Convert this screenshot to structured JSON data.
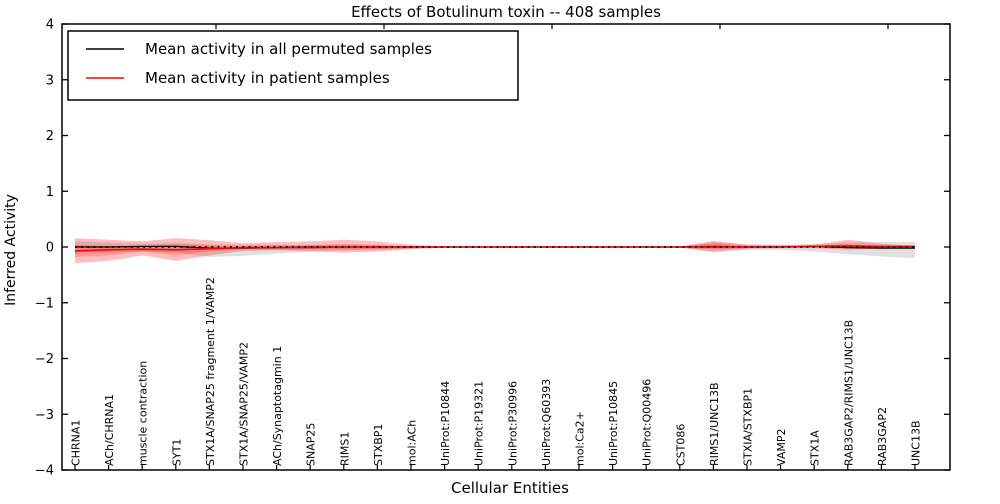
{
  "title": "Effects of Botulinum toxin -- 408 samples",
  "axes": {
    "xlabel": "Cellular Entities",
    "ylabel": "Inferred Activity"
  },
  "legend": {
    "items": [
      {
        "label": "Mean activity in all permuted samples",
        "color": "#000000"
      },
      {
        "label": "Mean activity in patient samples",
        "color": "#ff0000"
      }
    ]
  },
  "chart_data": {
    "type": "line",
    "title": "Effects of Botulinum toxin -- 408 samples",
    "xlabel": "Cellular Entities",
    "ylabel": "Inferred Activity",
    "ylim": [
      -4,
      4
    ],
    "yticks": [
      4,
      3,
      2,
      1,
      0,
      -1,
      -2,
      -3,
      -4
    ],
    "ytick_labels": [
      "4",
      "3",
      "2",
      "1",
      "0",
      "−1",
      "−2",
      "−3",
      "−4"
    ],
    "grid": false,
    "legend_position": "upper left",
    "categories": [
      "CHRNA1",
      "ACh/CHRNA1",
      "muscle contraction",
      "SYT1",
      "STX1A/SNAP25 fragment 1/VAMP2",
      "STX1A/SNAP25/VAMP2",
      "ACh/Synaptotagmin 1",
      "SNAP25",
      "RIMS1",
      "STXBP1",
      "mol:ACh",
      "UniProt:P10844",
      "UniProt:P19321",
      "UniProt:P30996",
      "UniProt:Q60393",
      "mol:Ca2+",
      "UniProt:P10845",
      "UniProt:Q00496",
      "CST086",
      "RIMS1/UNC13B",
      "STXIA/STXBP1",
      "VAMP2",
      "STX1A",
      "RAB3GAP2/RIMS1/UNC13B",
      "RAB3GAP2",
      "UNC13B"
    ],
    "series": [
      {
        "name": "Mean activity in all permuted samples",
        "color": "#000000",
        "style": "solid",
        "values": [
          0.0,
          0.0,
          0.01,
          0.01,
          -0.02,
          -0.02,
          -0.01,
          0.0,
          0.0,
          0.0,
          0.0,
          0.0,
          0.0,
          0.0,
          0.0,
          0.0,
          0.0,
          0.0,
          0.0,
          0.0,
          0.0,
          0.0,
          0.01,
          -0.01,
          -0.02,
          -0.02
        ]
      },
      {
        "name": "Mean activity in patient samples",
        "color": "#ff0000",
        "style": "solid",
        "values": [
          -0.07,
          -0.05,
          -0.04,
          -0.05,
          -0.03,
          -0.01,
          -0.01,
          -0.01,
          0.0,
          0.0,
          0.0,
          0.0,
          0.0,
          0.0,
          0.0,
          0.0,
          0.0,
          0.0,
          0.0,
          0.01,
          0.0,
          0.0,
          0.01,
          0.02,
          0.01,
          0.01
        ]
      }
    ],
    "bands": [
      {
        "name": "permuted-range",
        "color": "rgba(0,0,0,0.12)",
        "upper": [
          0.1,
          0.08,
          0.06,
          0.08,
          0.05,
          0.04,
          0.04,
          0.04,
          0.05,
          0.04,
          0.02,
          0.01,
          0.01,
          0.01,
          0.01,
          0.01,
          0.01,
          0.01,
          0.01,
          0.09,
          0.05,
          0.04,
          0.05,
          0.08,
          0.09,
          0.09
        ],
        "lower": [
          -0.12,
          -0.1,
          -0.08,
          -0.1,
          -0.18,
          -0.16,
          -0.12,
          -0.08,
          -0.06,
          -0.05,
          -0.03,
          -0.01,
          -0.01,
          -0.01,
          -0.01,
          -0.01,
          -0.01,
          -0.01,
          -0.01,
          -0.1,
          -0.06,
          -0.05,
          -0.08,
          -0.13,
          -0.17,
          -0.2
        ]
      },
      {
        "name": "patient-range-outer",
        "color": "rgba(255,0,0,0.25)",
        "upper": [
          0.16,
          0.13,
          0.1,
          0.16,
          0.12,
          0.07,
          0.09,
          0.1,
          0.13,
          0.1,
          0.04,
          0.01,
          0.01,
          0.01,
          0.01,
          0.01,
          0.01,
          0.01,
          0.01,
          0.11,
          0.04,
          0.03,
          0.04,
          0.13,
          0.06,
          0.02
        ],
        "lower": [
          -0.29,
          -0.25,
          -0.15,
          -0.25,
          -0.15,
          -0.07,
          -0.06,
          -0.08,
          -0.1,
          -0.08,
          -0.04,
          -0.01,
          -0.01,
          -0.01,
          -0.01,
          -0.01,
          -0.01,
          -0.01,
          -0.01,
          -0.08,
          -0.03,
          -0.02,
          -0.02,
          -0.05,
          -0.03,
          -0.01
        ]
      },
      {
        "name": "patient-range-inner",
        "color": "rgba(255,0,0,0.2)",
        "upper": [
          0.04,
          0.02,
          0.01,
          0.05,
          0.03,
          0.02,
          0.03,
          0.03,
          0.05,
          0.03,
          0.01,
          0.0,
          0.0,
          0.0,
          0.0,
          0.0,
          0.0,
          0.0,
          0.0,
          0.07,
          0.02,
          0.01,
          0.02,
          0.05,
          0.02,
          0.01
        ],
        "lower": [
          -0.18,
          -0.15,
          -0.08,
          -0.15,
          -0.08,
          -0.04,
          -0.04,
          -0.04,
          -0.05,
          -0.04,
          -0.02,
          -0.01,
          -0.01,
          -0.01,
          -0.01,
          -0.01,
          -0.01,
          -0.01,
          -0.01,
          -0.04,
          -0.02,
          -0.01,
          -0.01,
          -0.02,
          -0.01,
          -0.01
        ]
      }
    ],
    "zero_line": {
      "y": 0,
      "style": "dotted",
      "color": "#000000"
    }
  }
}
